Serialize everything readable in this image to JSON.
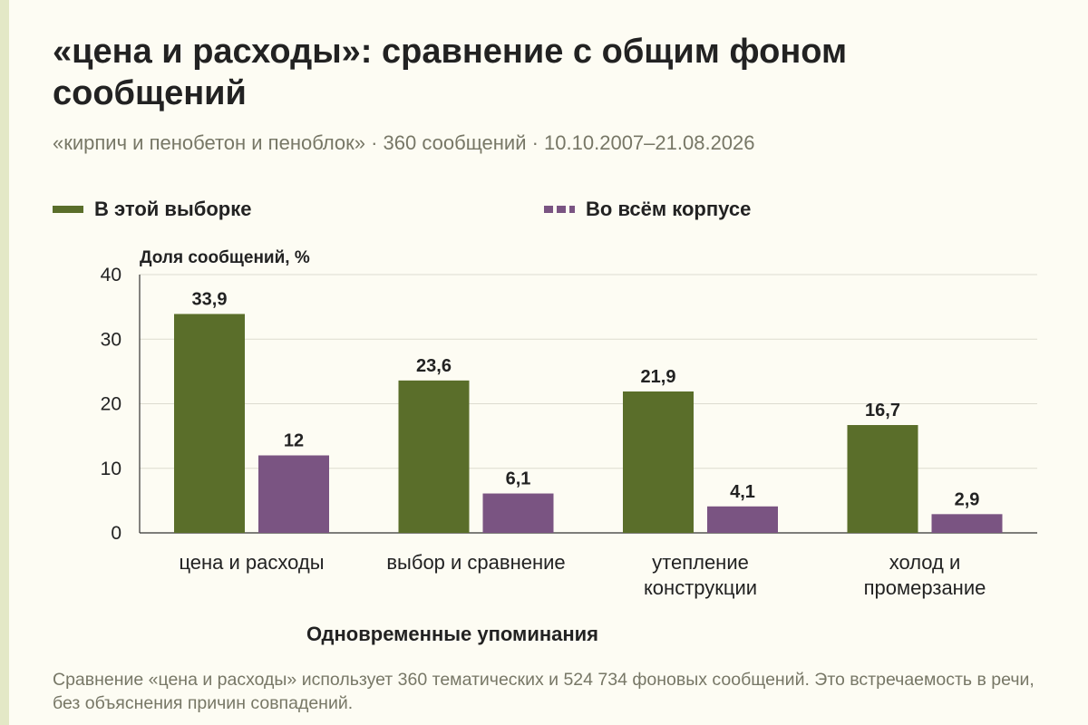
{
  "title": "«цена и расходы»: сравнение с общим фоном сообщений",
  "subtitle": "«кирпич и пенобетон и пеноблок» · 360 сообщений · 10.10.2007–21.08.2026",
  "caption": "Сравнение «цена и расходы» использует 360 тематических и 524 734 фоновых сообщений. Это встречаемость в речи, без объяснения причин совпадений.",
  "colors": {
    "series1": "#5a6e2a",
    "series2": "#7a5482",
    "grid": "#dddcd0",
    "axis": "#333333"
  },
  "chart_data": {
    "type": "bar",
    "ylabel": "Доля сообщений, %",
    "xlabel": "Одновременные упоминания",
    "ylim": [
      0,
      40
    ],
    "yticks": [
      0,
      10,
      20,
      30,
      40
    ],
    "grid": true,
    "legend_position": "top",
    "categories": [
      [
        "цена и расходы"
      ],
      [
        "выбор и сравнение"
      ],
      [
        "утепление",
        "конструкции"
      ],
      [
        "холод и",
        "промерзание"
      ]
    ],
    "series": [
      {
        "name": "В этой выборке",
        "values": [
          33.9,
          23.6,
          21.9,
          16.7
        ],
        "labels": [
          "33,9",
          "23,6",
          "21,9",
          "16,7"
        ],
        "color": "#5a6e2a"
      },
      {
        "name": "Во всём корпусе",
        "values": [
          12,
          6.1,
          4.1,
          2.9
        ],
        "labels": [
          "12",
          "6,1",
          "4,1",
          "2,9"
        ],
        "color": "#7a5482"
      }
    ]
  }
}
